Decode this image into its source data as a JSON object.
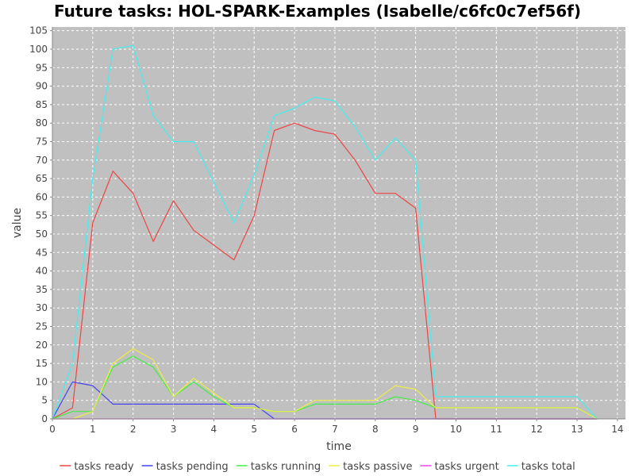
{
  "chart_data": {
    "type": "line",
    "title": "Future tasks: HOL-SPARK-Examples (Isabelle/c6fc0c7ef56f)",
    "xlabel": "time",
    "ylabel": "value",
    "xlim": [
      0,
      14.2
    ],
    "ylim": [
      0,
      106
    ],
    "x_ticks": [
      0,
      1,
      2,
      3,
      4,
      5,
      6,
      7,
      8,
      9,
      10,
      11,
      12,
      13,
      14
    ],
    "y_ticks": [
      0,
      5,
      10,
      15,
      20,
      25,
      30,
      35,
      40,
      45,
      50,
      55,
      60,
      65,
      70,
      75,
      80,
      85,
      90,
      95,
      100,
      105
    ],
    "grid": true,
    "legend_position": "bottom",
    "series": [
      {
        "name": "tasks ready",
        "color": "#ee4444",
        "points": [
          [
            0,
            0
          ],
          [
            0.5,
            3
          ],
          [
            1,
            53
          ],
          [
            1.5,
            67
          ],
          [
            2,
            61
          ],
          [
            2.5,
            48
          ],
          [
            3,
            59
          ],
          [
            3.5,
            51
          ],
          [
            4,
            47
          ],
          [
            4.5,
            43
          ],
          [
            5,
            55
          ],
          [
            5.5,
            78
          ],
          [
            6,
            80
          ],
          [
            6.5,
            78
          ],
          [
            7,
            77
          ],
          [
            7.5,
            70
          ],
          [
            8,
            61
          ],
          [
            8.5,
            61
          ],
          [
            9,
            57
          ],
          [
            9.5,
            0
          ],
          [
            13,
            0
          ],
          [
            13.5,
            0
          ]
        ]
      },
      {
        "name": "tasks pending",
        "color": "#4444ee",
        "points": [
          [
            0,
            0
          ],
          [
            0.5,
            10
          ],
          [
            1,
            9
          ],
          [
            1.5,
            4
          ],
          [
            2,
            4
          ],
          [
            2.5,
            4
          ],
          [
            3,
            4
          ],
          [
            3.5,
            4
          ],
          [
            4,
            4
          ],
          [
            4.5,
            4
          ],
          [
            5,
            4
          ],
          [
            5.5,
            0
          ],
          [
            13.5,
            0
          ]
        ]
      },
      {
        "name": "tasks running",
        "color": "#44ee44",
        "points": [
          [
            0,
            0
          ],
          [
            0.5,
            2
          ],
          [
            1,
            2
          ],
          [
            1.5,
            14
          ],
          [
            2,
            17
          ],
          [
            2.5,
            14
          ],
          [
            3,
            6
          ],
          [
            3.5,
            10
          ],
          [
            4,
            6
          ],
          [
            4.5,
            3
          ],
          [
            5,
            3
          ],
          [
            5.5,
            2
          ],
          [
            6,
            2
          ],
          [
            6.5,
            4
          ],
          [
            7,
            4
          ],
          [
            7.5,
            4
          ],
          [
            8,
            4
          ],
          [
            8.5,
            6
          ],
          [
            9,
            5
          ],
          [
            9.5,
            3
          ],
          [
            13,
            3
          ],
          [
            13.5,
            0
          ]
        ]
      },
      {
        "name": "tasks passive",
        "color": "#eeee44",
        "points": [
          [
            0,
            0
          ],
          [
            0.5,
            0
          ],
          [
            1,
            2
          ],
          [
            1.5,
            15
          ],
          [
            2,
            19
          ],
          [
            2.5,
            16
          ],
          [
            3,
            6
          ],
          [
            3.5,
            11
          ],
          [
            4,
            7
          ],
          [
            4.5,
            3
          ],
          [
            5,
            3
          ],
          [
            5.5,
            2
          ],
          [
            6,
            2
          ],
          [
            6.5,
            5
          ],
          [
            7,
            5
          ],
          [
            7.5,
            5
          ],
          [
            8,
            5
          ],
          [
            8.5,
            9
          ],
          [
            9,
            8
          ],
          [
            9.5,
            3
          ],
          [
            13,
            3
          ],
          [
            13.5,
            0
          ]
        ]
      },
      {
        "name": "tasks urgent",
        "color": "#ee44ee",
        "points": [
          [
            0,
            0
          ],
          [
            13.5,
            0
          ]
        ]
      },
      {
        "name": "tasks total",
        "color": "#44eeee",
        "points": [
          [
            0,
            0
          ],
          [
            0.5,
            15
          ],
          [
            1,
            65
          ],
          [
            1.5,
            100
          ],
          [
            2,
            101
          ],
          [
            2.5,
            82
          ],
          [
            3,
            75
          ],
          [
            3.5,
            75
          ],
          [
            4,
            64
          ],
          [
            4.5,
            53
          ],
          [
            5,
            66
          ],
          [
            5.5,
            82
          ],
          [
            6,
            84
          ],
          [
            6.5,
            87
          ],
          [
            7,
            86
          ],
          [
            7.5,
            79
          ],
          [
            8,
            70
          ],
          [
            8.5,
            76
          ],
          [
            9,
            70
          ],
          [
            9.5,
            6
          ],
          [
            13,
            6
          ],
          [
            13.5,
            0
          ]
        ]
      }
    ]
  }
}
